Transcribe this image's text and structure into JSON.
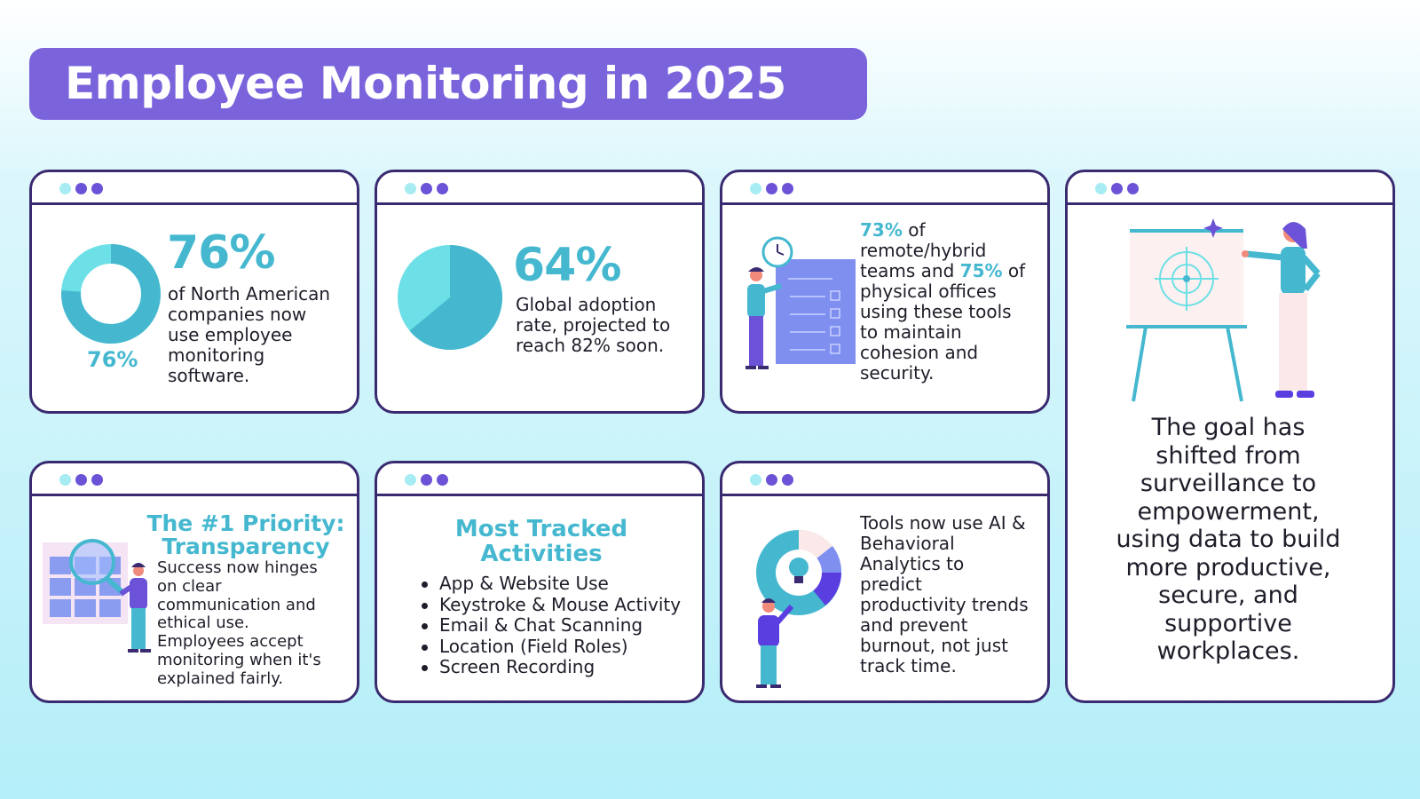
{
  "title": "Employee Monitoring in 2025",
  "cards": {
    "north_america": {
      "stat": "76%",
      "donut_label": "76%",
      "donut_fraction": 0.76,
      "lines": [
        "of North American",
        "companies now",
        "use employee",
        "monitoring",
        "software."
      ]
    },
    "global": {
      "stat": "64%",
      "pie_fraction": 0.64,
      "lines": [
        "Global adoption",
        "rate, projected to",
        "reach 82% soon."
      ]
    },
    "remote": {
      "pct1": "73%",
      "l1_rest": " of",
      "l2": "remote/hybrid",
      "l3_a": "teams and ",
      "pct2": "75%",
      "l3_b": " of",
      "lines_rest": [
        "physical offices",
        "using these tools",
        "to maintain",
        "cohesion and",
        "security."
      ]
    },
    "goal": {
      "lines": [
        "The goal has",
        "shifted from",
        "surveillance to",
        "empowerment,",
        "using data to build",
        "more productive,",
        "secure, and",
        "supportive",
        "workplaces."
      ]
    },
    "priority": {
      "heading": [
        "The #1 Priority:",
        "Transparency"
      ],
      "lines": [
        "Success now hinges",
        "on clear",
        "communication and",
        "ethical use.",
        "Employees accept",
        "monitoring when it's",
        "explained fairly."
      ]
    },
    "tracked": {
      "heading": [
        "Most Tracked",
        "Activities"
      ],
      "items": [
        "App & Website Use",
        "Keystroke & Mouse Activity",
        "Email & Chat Scanning",
        "Location (Field Roles)",
        "Screen Recording"
      ]
    },
    "ai": {
      "lines": [
        "Tools now use AI &",
        "Behavioral",
        "Analytics to",
        "predict",
        "productivity trends",
        "and prevent",
        "burnout, not just",
        "track time."
      ]
    }
  },
  "colors": {
    "accent_purple": "#7a63db",
    "teal": "#45b8d0",
    "light_teal": "#6ce0e6",
    "border": "#3a2a70"
  }
}
